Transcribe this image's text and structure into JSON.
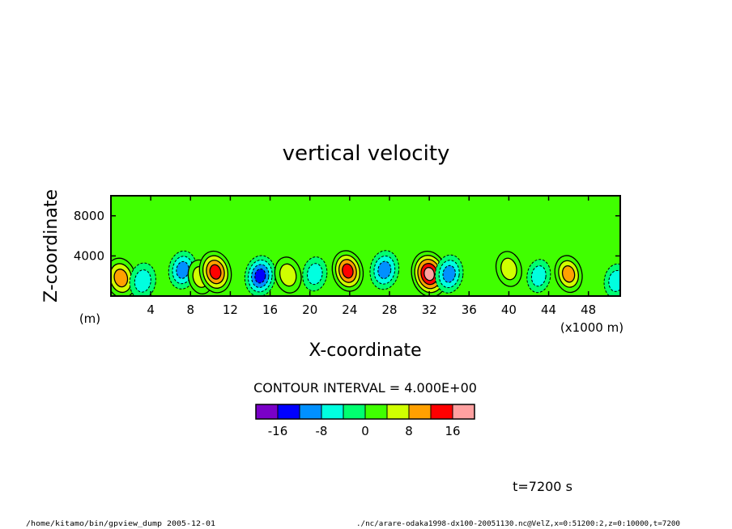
{
  "chart_data": {
    "type": "heatmap",
    "title": "vertical velocity",
    "xlabel": "X-coordinate",
    "ylabel": "Z-coordinate",
    "x_unit": "(x1000 m)",
    "y_unit": "(m)",
    "xlim": [
      0,
      51.2
    ],
    "ylim": [
      0,
      10000
    ],
    "x_ticks": [
      "4",
      "8",
      "12",
      "16",
      "20",
      "24",
      "28",
      "32",
      "36",
      "40",
      "44",
      "48"
    ],
    "y_ticks": [
      "4000",
      "8000"
    ],
    "contour_interval_label": "CONTOUR INTERVAL = 4.000E+00",
    "colorbar": {
      "levels": [
        -20,
        -16,
        -12,
        -8,
        -4,
        0,
        4,
        8,
        12,
        16,
        20,
        24
      ],
      "colors": [
        "#7a00c8",
        "#0000ff",
        "#0090ff",
        "#00ffe0",
        "#00ff70",
        "#40ff00",
        "#d0ff00",
        "#ffa000",
        "#ff0000",
        "#ffa0a0"
      ],
      "tick_labels": [
        "-16",
        "-8",
        "0",
        "8",
        "16"
      ],
      "tick_values": [
        -16,
        -8,
        0,
        8,
        16
      ]
    },
    "grid": false,
    "features": [
      {
        "x": 1.0,
        "z": 1800,
        "w": 12
      },
      {
        "x": 3.2,
        "z": 1500,
        "w": -8
      },
      {
        "x": 7.2,
        "z": 2600,
        "w": -10
      },
      {
        "x": 9.0,
        "z": 1900,
        "w": 6
      },
      {
        "x": 10.5,
        "z": 2400,
        "w": 14
      },
      {
        "x": 15.0,
        "z": 2000,
        "w": -13
      },
      {
        "x": 17.8,
        "z": 2100,
        "w": 8
      },
      {
        "x": 20.5,
        "z": 2200,
        "w": -6
      },
      {
        "x": 23.8,
        "z": 2500,
        "w": 13
      },
      {
        "x": 27.5,
        "z": 2600,
        "w": -11
      },
      {
        "x": 32.0,
        "z": 2200,
        "w": 18
      },
      {
        "x": 34.0,
        "z": 2200,
        "w": -10
      },
      {
        "x": 40.0,
        "z": 2700,
        "w": 7
      },
      {
        "x": 43.0,
        "z": 2000,
        "w": -5
      },
      {
        "x": 46.0,
        "z": 2200,
        "w": 9
      },
      {
        "x": 50.8,
        "z": 1500,
        "w": -6
      }
    ]
  },
  "time_label": "t=7200 s",
  "footer": {
    "left": "/home/kitamo/bin/gpview_dump  2005-12-01",
    "right": "./nc/arare-odaka1998-dx100-20051130.nc@VelZ,x=0:51200:2,z=0:10000,t=7200"
  }
}
